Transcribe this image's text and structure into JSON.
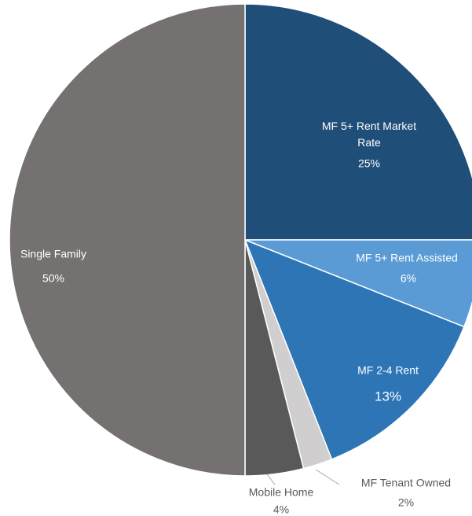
{
  "chart_data": {
    "type": "pie",
    "categories": [
      "MF 5+ Rent Market Rate",
      "MF 5+ Rent Assisted",
      "MF 2-4 Rent",
      "MF Tenant Owned",
      "Mobile Home",
      "Single Family"
    ],
    "values": [
      25,
      6,
      13,
      2,
      4,
      50
    ],
    "value_labels": [
      "25%",
      "6%",
      "13%",
      "2%",
      "4%",
      "50%"
    ],
    "colors": [
      "#1f4e79",
      "#5b9bd5",
      "#2e75b6",
      "#d0cece",
      "#595959",
      "#767171"
    ]
  }
}
